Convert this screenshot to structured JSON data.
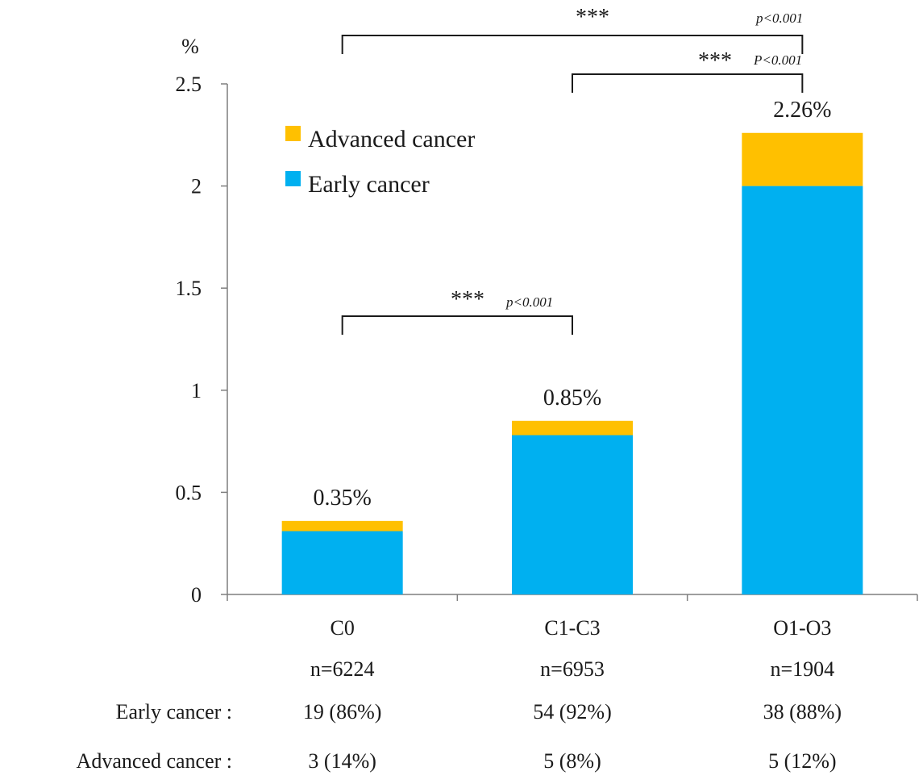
{
  "chart_data": {
    "type": "bar",
    "stacked": true,
    "ylabel": "%",
    "ylim": [
      0,
      2.5
    ],
    "yticks": [
      "0",
      "0.5",
      "1",
      "1.5",
      "2",
      "2.5"
    ],
    "categories": [
      "C0",
      "C1-C3",
      "O1-O3"
    ],
    "category_n": [
      "n=6224",
      "n=6953",
      "n=1904"
    ],
    "series": [
      {
        "name": "Early cancer",
        "color": "#00B0F0",
        "values": [
          0.31,
          0.78,
          2.0
        ]
      },
      {
        "name": "Advanced cancer",
        "color": "#FFC000",
        "values": [
          0.05,
          0.07,
          0.26
        ]
      }
    ],
    "totals": [
      0.36,
      0.85,
      2.26
    ],
    "bar_labels": [
      "0.35%",
      "0.85%",
      "2.26%"
    ],
    "legend": {
      "placement": "top-left",
      "entries": [
        {
          "label": "Advanced cancer",
          "color": "#FFC000"
        },
        {
          "label": "Early cancer",
          "color": "#00B0F0"
        }
      ]
    },
    "table": {
      "rows": [
        {
          "label": "Early cancer :",
          "values": [
            "19 (86%)",
            "54 (92%)",
            "38 (88%)"
          ]
        },
        {
          "label": "Advanced cancer :",
          "values": [
            "3 (14%)",
            "5 (8%)",
            "5 (12%)"
          ]
        }
      ]
    },
    "significance": [
      {
        "from": 0,
        "to": 1,
        "stars": "***",
        "p": "p<0.001"
      },
      {
        "from": 0,
        "to": 2,
        "stars": "***",
        "p": "p<0.001"
      },
      {
        "from": 1,
        "to": 2,
        "stars": "***",
        "p": "P<0.001"
      }
    ],
    "grid": false
  }
}
